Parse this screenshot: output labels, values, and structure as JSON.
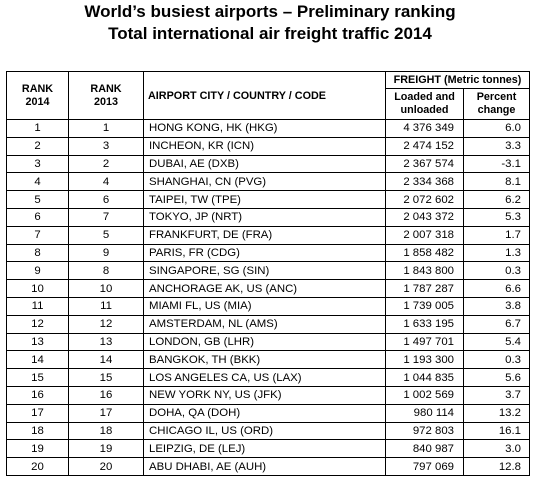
{
  "title_line1": "World’s busiest airports – Preliminary ranking",
  "title_line2": "Total international air freight traffic 2014",
  "headers": {
    "rank_2014": [
      "RANK",
      "2014"
    ],
    "rank_2013": [
      "RANK",
      "2013"
    ],
    "airport": "AIRPORT CITY / COUNTRY / CODE",
    "freight_group": "FREIGHT (Metric tonnes)",
    "loaded": [
      "Loaded and",
      "unloaded"
    ],
    "percent": [
      "Percent",
      "change"
    ]
  },
  "rows": [
    {
      "rank2014": "1",
      "rank2013": "1",
      "airport": "HONG KONG, HK (HKG)",
      "freight": "4 376 349",
      "change": "6.0"
    },
    {
      "rank2014": "2",
      "rank2013": "3",
      "airport": "INCHEON, KR (ICN)",
      "freight": "2 474 152",
      "change": "3.3"
    },
    {
      "rank2014": "3",
      "rank2013": "2",
      "airport": "DUBAI, AE (DXB)",
      "freight": "2 367 574",
      "change": "-3.1"
    },
    {
      "rank2014": "4",
      "rank2013": "4",
      "airport": "SHANGHAI, CN (PVG)",
      "freight": "2 334 368",
      "change": "8.1"
    },
    {
      "rank2014": "5",
      "rank2013": "6",
      "airport": "TAIPEI, TW (TPE)",
      "freight": "2 072 602",
      "change": "6.2"
    },
    {
      "rank2014": "6",
      "rank2013": "7",
      "airport": "TOKYO, JP (NRT)",
      "freight": "2 043 372",
      "change": "5.3"
    },
    {
      "rank2014": "7",
      "rank2013": "5",
      "airport": "FRANKFURT, DE (FRA)",
      "freight": "2 007 318",
      "change": "1.7"
    },
    {
      "rank2014": "8",
      "rank2013": "9",
      "airport": "PARIS, FR (CDG)",
      "freight": "1 858 482",
      "change": "1.3"
    },
    {
      "rank2014": "9",
      "rank2013": "8",
      "airport": "SINGAPORE, SG (SIN)",
      "freight": "1 843 800",
      "change": "0.3"
    },
    {
      "rank2014": "10",
      "rank2013": "10",
      "airport": "ANCHORAGE AK, US (ANC)",
      "freight": "1 787 287",
      "change": "6.6"
    },
    {
      "rank2014": "11",
      "rank2013": "11",
      "airport": "MIAMI FL, US (MIA)",
      "freight": "1 739 005",
      "change": "3.8"
    },
    {
      "rank2014": "12",
      "rank2013": "12",
      "airport": "AMSTERDAM, NL (AMS)",
      "freight": "1 633 195",
      "change": "6.7"
    },
    {
      "rank2014": "13",
      "rank2013": "13",
      "airport": "LONDON, GB (LHR)",
      "freight": "1 497 701",
      "change": "5.4"
    },
    {
      "rank2014": "14",
      "rank2013": "14",
      "airport": "BANGKOK, TH (BKK)",
      "freight": "1 193 300",
      "change": "0.3"
    },
    {
      "rank2014": "15",
      "rank2013": "15",
      "airport": "LOS ANGELES CA, US (LAX)",
      "freight": "1 044 835",
      "change": "5.6"
    },
    {
      "rank2014": "16",
      "rank2013": "16",
      "airport": "NEW YORK NY, US (JFK)",
      "freight": "1 002 569",
      "change": "3.7"
    },
    {
      "rank2014": "17",
      "rank2013": "17",
      "airport": "DOHA, QA (DOH)",
      "freight": "980 114",
      "change": "13.2"
    },
    {
      "rank2014": "18",
      "rank2013": "18",
      "airport": "CHICAGO IL, US (ORD)",
      "freight": "972 803",
      "change": "16.1"
    },
    {
      "rank2014": "19",
      "rank2013": "19",
      "airport": "LEIPZIG, DE (LEJ)",
      "freight": "840 987",
      "change": "3.0"
    },
    {
      "rank2014": "20",
      "rank2013": "20",
      "airport": "ABU DHABI, AE (AUH)",
      "freight": "797 069",
      "change": "12.8"
    }
  ]
}
